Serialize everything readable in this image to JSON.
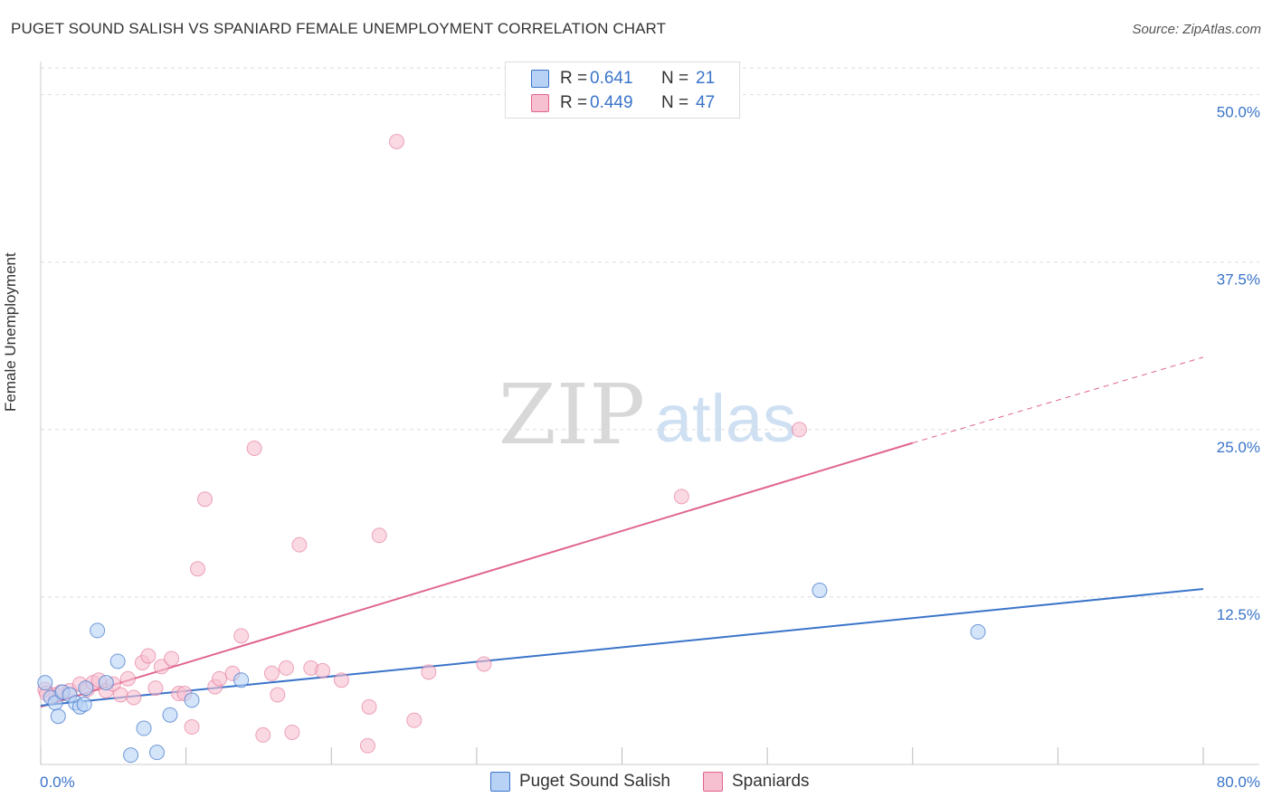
{
  "title": "PUGET SOUND SALISH VS SPANIARD FEMALE UNEMPLOYMENT CORRELATION CHART",
  "source": "Source: ZipAtlas.com",
  "colors": {
    "blue": "#3a74c9",
    "blue_fill": "#b7d2f5",
    "pink": "#e0648c",
    "pink_fill": "#f7c0d0",
    "grid": "#dddddd",
    "tick_label": "#3a74c9"
  },
  "legend": {
    "r_label": "R =",
    "n_label": "N =",
    "series": [
      {
        "name": "Puget Sound Salish",
        "r": "0.641",
        "n": "21"
      },
      {
        "name": "Spaniards",
        "r": "0.449",
        "n": "47"
      }
    ]
  },
  "chart_data": {
    "type": "scatter",
    "title": "PUGET SOUND SALISH VS SPANIARD FEMALE UNEMPLOYMENT CORRELATION CHART",
    "xlabel": "",
    "ylabel": "Female Unemployment",
    "xlim": [
      0,
      80
    ],
    "ylim": [
      0,
      52
    ],
    "x_tick_labels": [
      "0.0%",
      "80.0%"
    ],
    "y_ticks": [
      12.5,
      25.0,
      37.5,
      50.0
    ],
    "y_tick_labels": [
      "12.5%",
      "25.0%",
      "37.5%",
      "50.0%"
    ],
    "grid": true,
    "watermark": "ZIPatlas",
    "series": [
      {
        "name": "Puget Sound Salish",
        "color": "#3a74c9",
        "points": [
          [
            0.3,
            6.1
          ],
          [
            0.7,
            5.0
          ],
          [
            1.0,
            4.6
          ],
          [
            1.2,
            3.6
          ],
          [
            1.5,
            5.4
          ],
          [
            2.0,
            5.2
          ],
          [
            2.4,
            4.6
          ],
          [
            2.7,
            4.3
          ],
          [
            3.0,
            4.5
          ],
          [
            3.1,
            5.7
          ],
          [
            3.9,
            10.0
          ],
          [
            5.3,
            7.7
          ],
          [
            4.5,
            6.1
          ],
          [
            6.2,
            0.7
          ],
          [
            7.1,
            2.7
          ],
          [
            8.0,
            0.9
          ],
          [
            8.9,
            3.7
          ],
          [
            10.4,
            4.8
          ],
          [
            13.8,
            6.3
          ],
          [
            53.6,
            13.0
          ],
          [
            64.5,
            9.9
          ]
        ],
        "trend": {
          "x": [
            0,
            80
          ],
          "y": [
            4.4,
            13.1
          ]
        }
      },
      {
        "name": "Spaniards",
        "color": "#e0648c",
        "points": [
          [
            0.3,
            5.6
          ],
          [
            1.0,
            5.2
          ],
          [
            1.4,
            5.4
          ],
          [
            2.0,
            5.5
          ],
          [
            2.7,
            6.0
          ],
          [
            3.2,
            5.6
          ],
          [
            3.6,
            6.1
          ],
          [
            4.0,
            6.3
          ],
          [
            4.5,
            5.5
          ],
          [
            5.0,
            6.0
          ],
          [
            5.5,
            5.2
          ],
          [
            6.0,
            6.4
          ],
          [
            6.4,
            5.0
          ],
          [
            7.0,
            7.6
          ],
          [
            7.4,
            8.1
          ],
          [
            7.9,
            5.7
          ],
          [
            8.3,
            7.3
          ],
          [
            9.0,
            7.9
          ],
          [
            9.5,
            5.3
          ],
          [
            9.9,
            5.3
          ],
          [
            10.4,
            2.8
          ],
          [
            10.8,
            14.6
          ],
          [
            11.3,
            19.8
          ],
          [
            12.0,
            5.8
          ],
          [
            12.3,
            6.4
          ],
          [
            13.2,
            6.8
          ],
          [
            13.8,
            9.6
          ],
          [
            14.7,
            23.6
          ],
          [
            15.3,
            2.2
          ],
          [
            15.9,
            6.8
          ],
          [
            16.3,
            5.2
          ],
          [
            16.9,
            7.2
          ],
          [
            17.3,
            2.4
          ],
          [
            17.8,
            16.4
          ],
          [
            18.6,
            7.2
          ],
          [
            19.4,
            7.0
          ],
          [
            20.7,
            6.3
          ],
          [
            22.5,
            1.4
          ],
          [
            22.6,
            4.3
          ],
          [
            23.3,
            17.1
          ],
          [
            24.5,
            46.5
          ],
          [
            25.7,
            3.3
          ],
          [
            26.7,
            6.9
          ],
          [
            30.5,
            7.5
          ],
          [
            44.1,
            20.0
          ],
          [
            52.2,
            25.0
          ],
          [
            0.4,
            5.3
          ]
        ],
        "trend": {
          "x": [
            0,
            60
          ],
          "y": [
            4.3,
            24.0
          ]
        },
        "trend_extension": {
          "x": [
            60,
            80
          ],
          "y": [
            24.0,
            30.4
          ]
        }
      }
    ]
  }
}
